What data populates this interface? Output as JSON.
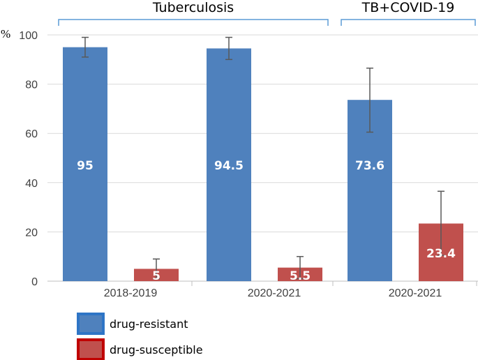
{
  "chart_data": {
    "type": "bar",
    "unit": "%",
    "ylim": [
      0,
      100
    ],
    "yticks": [
      0,
      20,
      40,
      60,
      80,
      100
    ],
    "categories": [
      "2018-2019",
      "2020-2021",
      "2020-2021"
    ],
    "groups": [
      {
        "label": "Tuberculosis",
        "categories": [
          0,
          1
        ]
      },
      {
        "label": "TB+COVID-19",
        "categories": [
          2
        ]
      }
    ],
    "series": [
      {
        "name": "drug-resistant",
        "color": "#4f81bd",
        "values": [
          95,
          94.5,
          73.6
        ],
        "labels": [
          "95",
          "94.5",
          "73.6"
        ],
        "error": [
          [
            91,
            99
          ],
          [
            90,
            99
          ],
          [
            60.5,
            86.5
          ]
        ]
      },
      {
        "name": "drug-susceptible",
        "color": "#c0504d",
        "values": [
          5,
          5.5,
          23.4
        ],
        "labels": [
          "5",
          "5.5",
          "23.4"
        ],
        "error": [
          [
            1,
            9
          ],
          [
            1,
            10
          ],
          [
            10.5,
            36.5
          ]
        ]
      }
    ],
    "legend": {
      "position": "bottom-left",
      "colors": [
        "#2e75c6",
        "#c00000"
      ]
    },
    "grid": true
  }
}
